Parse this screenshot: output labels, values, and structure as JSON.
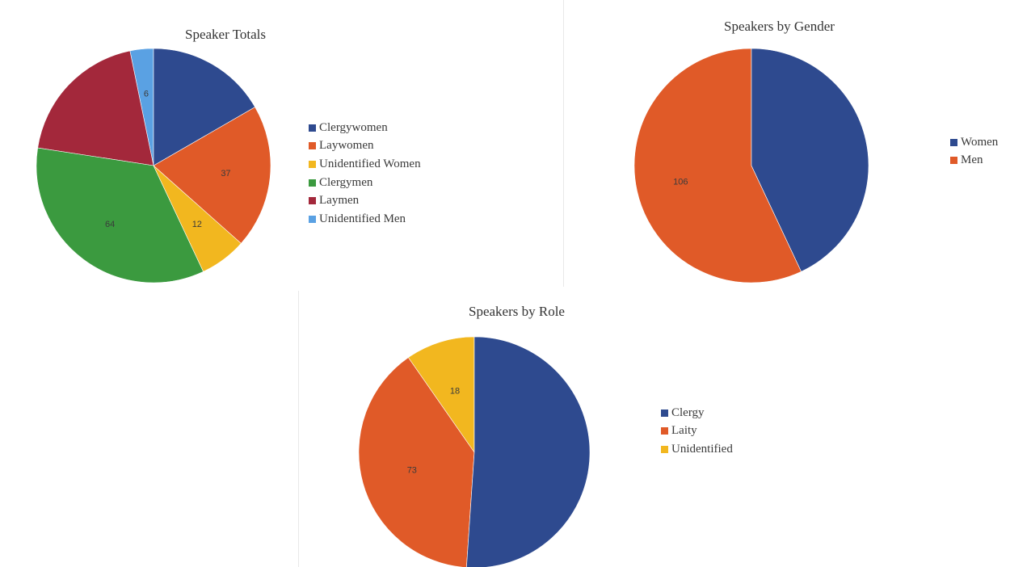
{
  "colors": {
    "blue": "#2e4a8f",
    "orange": "#e05a28",
    "yellow": "#f2b71f",
    "green": "#3b9a3f",
    "maroon": "#a3283b",
    "light_blue": "#5aa1e3"
  },
  "chart_data": [
    {
      "type": "pie",
      "title": "Speaker Totals",
      "legend_position": "right",
      "slices": [
        {
          "label": "Clergywomen",
          "value": 31,
          "value_label": "",
          "color": "#2e4a8f"
        },
        {
          "label": "Laywomen",
          "value": 37,
          "value_label": "37",
          "color": "#e05a28"
        },
        {
          "label": "Unidentified Women",
          "value": 12,
          "value_label": "12",
          "color": "#f2b71f"
        },
        {
          "label": "Clergymen",
          "value": 64,
          "value_label": "64",
          "color": "#3b9a3f"
        },
        {
          "label": "Laymen",
          "value": 36,
          "value_label": "",
          "color": "#a3283b"
        },
        {
          "label": "Unidentified Men",
          "value": 6,
          "value_label": "6",
          "color": "#5aa1e3"
        }
      ],
      "draw_order": [
        5,
        4,
        3,
        2,
        1,
        0
      ]
    },
    {
      "type": "pie",
      "title": "Speakers by Gender",
      "legend_position": "right",
      "slices": [
        {
          "label": "Women",
          "value": 80,
          "value_label": "",
          "color": "#2e4a8f"
        },
        {
          "label": "Men",
          "value": 106,
          "value_label": "106",
          "color": "#e05a28"
        }
      ],
      "draw_order": [
        1,
        0
      ]
    },
    {
      "type": "pie",
      "title": "Speakers by Role",
      "legend_position": "right",
      "slices": [
        {
          "label": "Clergy",
          "value": 95,
          "value_label": "",
          "color": "#2e4a8f"
        },
        {
          "label": "Laity",
          "value": 73,
          "value_label": "73",
          "color": "#e05a28"
        },
        {
          "label": "Unidentified",
          "value": 18,
          "value_label": "18",
          "color": "#f2b71f"
        }
      ],
      "draw_order": [
        2,
        1,
        0
      ]
    }
  ]
}
